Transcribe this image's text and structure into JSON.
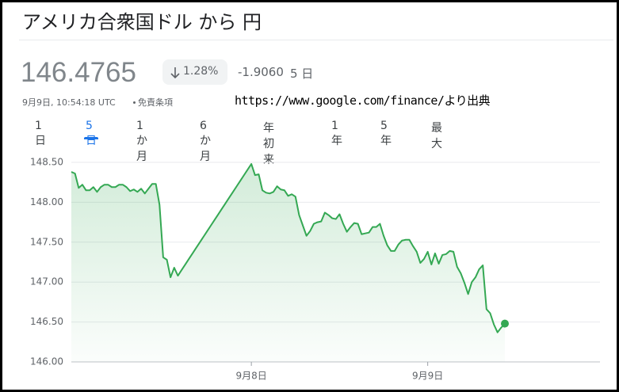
{
  "header": {
    "title": "アメリカ合衆国ドル から 円",
    "price": "146.4765",
    "change_percent": "1.28%",
    "change": "-1.9060",
    "period": "5 日",
    "timestamp": "9月9日, 10:54:18 UTC",
    "disclaimer": "免責条項",
    "source": "https://www.google.com/finance/より出典"
  },
  "tabs": {
    "items": [
      "1 日",
      "5 日",
      "1 か月",
      "6 か月",
      "年初来",
      "1 年",
      "5 年",
      "最大"
    ],
    "selected": 1
  },
  "chart_data": {
    "type": "line",
    "color": "#34a853",
    "grid": true,
    "ylim": [
      146.0,
      148.5
    ],
    "yticks": [
      {
        "value": 146.0,
        "label": "146.00"
      },
      {
        "value": 146.5,
        "label": "146.50"
      },
      {
        "value": 147.0,
        "label": "147.00"
      },
      {
        "value": 147.5,
        "label": "147.50"
      },
      {
        "value": 148.0,
        "label": "148.00"
      },
      {
        "value": 148.5,
        "label": "148.50"
      }
    ],
    "categories": [
      null,
      null,
      null,
      null,
      null,
      null,
      null,
      null,
      null,
      null,
      null,
      null,
      null,
      null,
      null,
      null,
      null,
      null,
      null,
      null,
      null,
      null,
      null,
      null,
      null,
      null,
      null,
      null,
      null,
      null,
      null,
      null,
      null,
      null,
      null,
      null,
      null,
      null,
      null,
      null,
      null,
      null,
      null,
      null,
      null,
      null,
      null,
      null,
      null,
      "9月8日",
      null,
      null,
      null,
      null,
      null,
      null,
      null,
      null,
      null,
      null,
      null,
      null,
      null,
      null,
      null,
      null,
      null,
      null,
      null,
      null,
      null,
      null,
      null,
      null,
      null,
      null,
      null,
      null,
      null,
      null,
      null,
      null,
      null,
      null,
      null,
      null,
      null,
      null,
      null,
      null,
      null,
      null,
      null,
      null,
      null,
      null,
      null,
      "9月9日",
      null,
      null,
      null,
      null,
      null,
      null,
      null,
      null,
      null,
      null,
      null,
      null,
      null,
      null,
      null,
      null,
      null,
      null,
      null,
      null,
      null
    ],
    "values": [
      148.38,
      148.36,
      148.18,
      148.22,
      148.15,
      148.15,
      148.19,
      148.13,
      148.19,
      148.22,
      148.22,
      148.19,
      148.19,
      148.22,
      148.22,
      148.19,
      148.14,
      148.16,
      148.13,
      148.17,
      148.11,
      148.17,
      148.23,
      148.23,
      147.97,
      147.31,
      147.28,
      147.06,
      147.18,
      147.08,
      147.15,
      147.22,
      147.29,
      147.36,
      147.43,
      147.5,
      147.57,
      147.64,
      147.71,
      147.78,
      147.85,
      147.92,
      147.99,
      148.06,
      148.13,
      148.2,
      148.27,
      148.34,
      148.41,
      148.48,
      148.34,
      148.35,
      148.15,
      148.12,
      148.11,
      148.13,
      148.2,
      148.16,
      148.15,
      148.08,
      148.1,
      148.07,
      147.84,
      147.71,
      147.58,
      147.64,
      147.73,
      147.75,
      147.76,
      147.87,
      147.84,
      147.8,
      147.79,
      147.85,
      147.73,
      147.63,
      147.69,
      147.74,
      147.73,
      147.6,
      147.61,
      147.62,
      147.69,
      147.69,
      147.73,
      147.58,
      147.46,
      147.39,
      147.39,
      147.47,
      147.52,
      147.53,
      147.53,
      147.45,
      147.38,
      147.24,
      147.29,
      147.38,
      147.22,
      147.36,
      147.23,
      147.34,
      147.35,
      147.39,
      147.38,
      147.19,
      147.11,
      146.99,
      146.85,
      147.0,
      147.06,
      147.16,
      147.21,
      146.66,
      146.61,
      146.47,
      146.37,
      146.43,
      146.48
    ]
  }
}
